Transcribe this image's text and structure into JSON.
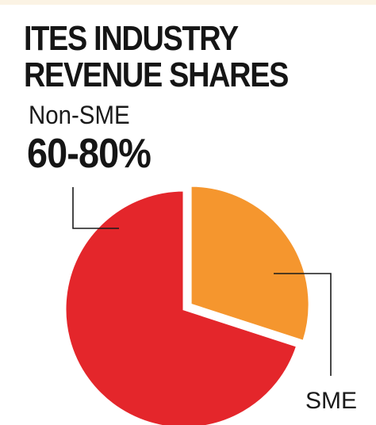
{
  "title": {
    "line1": "ITES INDUSTRY",
    "line2": "REVENUE SHARES"
  },
  "chart_data": {
    "type": "pie",
    "title": "ITES INDUSTRY REVENUE SHARES",
    "slices": [
      {
        "label": "Non-SME",
        "value_text": "60-80%",
        "value": 70,
        "color": "#e4262b"
      },
      {
        "label": "SME",
        "value_text": "",
        "value": 30,
        "color": "#f5962e"
      }
    ]
  },
  "colors": {
    "title_text": "#151515",
    "leader_line": "#1a1a1a",
    "slice_separator": "#ffffff"
  }
}
